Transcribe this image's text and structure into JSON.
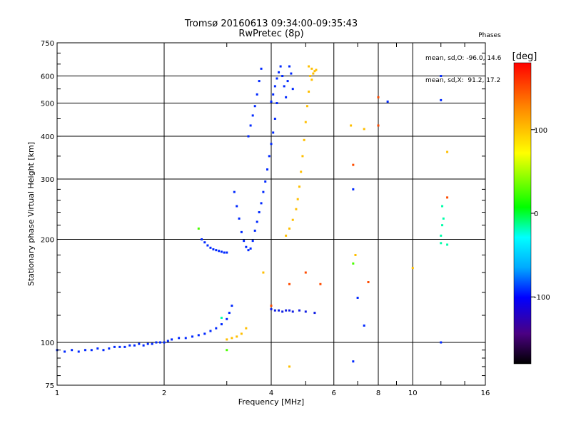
{
  "chart_data": {
    "type": "scatter",
    "title": "Tromsø 20160613 09:34:00-09:35:43",
    "subtitle": "RwPretec (8p)",
    "xlabel": "Frequency [MHz]",
    "ylabel": "Stationary phase Virtual Height [km]",
    "x_scale": "log2",
    "y_scale": "log",
    "xlim": [
      1,
      16
    ],
    "ylim": [
      75,
      750
    ],
    "x_ticks": [
      1,
      2,
      4,
      6,
      8,
      10,
      16
    ],
    "x_tick_labels": [
      "1",
      "2",
      "4",
      "6",
      "8",
      "10",
      "16"
    ],
    "y_ticks": [
      75,
      100,
      200,
      300,
      400,
      500,
      600,
      750
    ],
    "y_tick_labels": [
      "75",
      "100",
      "200",
      "300",
      "400",
      "500",
      "600",
      "750"
    ],
    "grid": true,
    "colorbar": {
      "label": "[deg]",
      "range": [
        -180,
        180
      ],
      "ticks": [
        100,
        0,
        -100
      ],
      "tick_labels": [
        "100",
        "0",
        "-100"
      ]
    },
    "legend": {
      "header": "Phases",
      "lines": [
        "mean, sd,O: -96.0, 14.6",
        "mean, sd,X:  91.2, 17.2"
      ]
    },
    "traces": [
      {
        "phase": -100,
        "points": [
          [
            1.0,
            95
          ],
          [
            1.05,
            94
          ],
          [
            1.1,
            95
          ],
          [
            1.15,
            94
          ],
          [
            1.2,
            95
          ],
          [
            1.25,
            95
          ],
          [
            1.3,
            96
          ],
          [
            1.35,
            95
          ],
          [
            1.4,
            96
          ],
          [
            1.45,
            97
          ],
          [
            1.5,
            97
          ],
          [
            1.55,
            97
          ],
          [
            1.6,
            98
          ],
          [
            1.65,
            98
          ],
          [
            1.7,
            99
          ],
          [
            1.75,
            98
          ],
          [
            1.8,
            99
          ],
          [
            1.85,
            99
          ],
          [
            1.9,
            100
          ],
          [
            1.95,
            100
          ],
          [
            2.0,
            100
          ],
          [
            2.05,
            101
          ],
          [
            2.1,
            102
          ],
          [
            2.2,
            103
          ],
          [
            2.3,
            103
          ],
          [
            2.4,
            104
          ],
          [
            2.5,
            105
          ],
          [
            2.6,
            106
          ],
          [
            2.7,
            108
          ],
          [
            2.8,
            110
          ],
          [
            2.9,
            113
          ],
          [
            3.0,
            117
          ],
          [
            3.05,
            122
          ],
          [
            3.1,
            128
          ]
        ]
      },
      {
        "phase": -100,
        "points": [
          [
            2.55,
            200
          ],
          [
            2.6,
            196
          ],
          [
            2.65,
            192
          ],
          [
            2.7,
            189
          ],
          [
            2.75,
            187
          ],
          [
            2.8,
            186
          ],
          [
            2.85,
            185
          ],
          [
            2.9,
            184
          ],
          [
            2.95,
            183
          ],
          [
            3.0,
            183
          ]
        ]
      },
      {
        "phase": -100,
        "points": [
          [
            3.15,
            275
          ],
          [
            3.2,
            250
          ],
          [
            3.25,
            230
          ],
          [
            3.3,
            210
          ],
          [
            3.35,
            198
          ],
          [
            3.4,
            190
          ],
          [
            3.45,
            186
          ],
          [
            3.5,
            188
          ],
          [
            3.55,
            198
          ],
          [
            3.6,
            212
          ],
          [
            3.65,
            225
          ],
          [
            3.7,
            240
          ],
          [
            3.75,
            255
          ],
          [
            3.8,
            275
          ],
          [
            3.85,
            295
          ],
          [
            3.9,
            320
          ],
          [
            3.95,
            350
          ],
          [
            4.0,
            380
          ],
          [
            4.05,
            410
          ],
          [
            4.1,
            450
          ],
          [
            4.15,
            500
          ]
        ]
      },
      {
        "phase": -100,
        "points": [
          [
            3.45,
            400
          ],
          [
            3.5,
            430
          ],
          [
            3.55,
            460
          ],
          [
            3.6,
            490
          ],
          [
            3.65,
            530
          ],
          [
            3.7,
            580
          ],
          [
            3.75,
            630
          ]
        ]
      },
      {
        "phase": -100,
        "points": [
          [
            4.0,
            505
          ],
          [
            4.05,
            530
          ],
          [
            4.1,
            560
          ],
          [
            4.15,
            590
          ],
          [
            4.2,
            615
          ],
          [
            4.25,
            640
          ],
          [
            4.3,
            600
          ],
          [
            4.35,
            560
          ],
          [
            4.4,
            520
          ],
          [
            4.45,
            580
          ],
          [
            4.5,
            640
          ],
          [
            4.55,
            610
          ],
          [
            4.6,
            550
          ]
        ]
      },
      {
        "phase": -110,
        "points": [
          [
            4.0,
            125
          ],
          [
            4.1,
            124
          ],
          [
            4.2,
            124
          ],
          [
            4.3,
            123
          ],
          [
            4.4,
            124
          ],
          [
            4.5,
            124
          ],
          [
            4.6,
            123
          ],
          [
            4.8,
            124
          ],
          [
            5.0,
            123
          ],
          [
            5.3,
            122
          ]
        ]
      },
      {
        "phase": 100,
        "points": [
          [
            4.4,
            205
          ],
          [
            4.5,
            215
          ],
          [
            4.6,
            228
          ],
          [
            4.7,
            245
          ],
          [
            4.75,
            262
          ],
          [
            4.8,
            285
          ],
          [
            4.85,
            315
          ],
          [
            4.9,
            350
          ],
          [
            4.95,
            390
          ],
          [
            5.0,
            440
          ],
          [
            5.05,
            490
          ],
          [
            5.1,
            540
          ]
        ]
      },
      {
        "phase": 100,
        "points": [
          [
            5.1,
            640
          ],
          [
            5.2,
            630
          ],
          [
            5.3,
            620
          ],
          [
            5.15,
            600
          ],
          [
            5.25,
            610
          ],
          [
            5.35,
            625
          ],
          [
            5.2,
            585
          ]
        ]
      },
      {
        "phase": 100,
        "points": [
          [
            3.0,
            102
          ],
          [
            3.1,
            103
          ],
          [
            3.2,
            104
          ],
          [
            3.3,
            106
          ],
          [
            3.4,
            110
          ]
        ]
      },
      {
        "phase": -100,
        "points": [
          [
            6.8,
            88
          ],
          [
            6.8,
            280
          ],
          [
            7.3,
            112
          ],
          [
            7.0,
            135
          ],
          [
            8.5,
            505
          ],
          [
            12.0,
            100
          ],
          [
            12.0,
            600
          ],
          [
            12.0,
            510
          ]
        ]
      },
      {
        "phase": 20,
        "points": [
          [
            2.5,
            215
          ],
          [
            6.8,
            170
          ],
          [
            3.0,
            95
          ]
        ]
      },
      {
        "phase": -20,
        "points": [
          [
            12.0,
            205
          ],
          [
            12.0,
            195
          ],
          [
            12.5,
            193
          ],
          [
            12.2,
            230
          ],
          [
            12.1,
            250
          ],
          [
            12.1,
            220
          ],
          [
            2.9,
            118
          ]
        ]
      },
      {
        "phase": 150,
        "points": [
          [
            6.8,
            330
          ],
          [
            7.5,
            150
          ],
          [
            8.0,
            430
          ],
          [
            8.0,
            520
          ],
          [
            4.5,
            148
          ],
          [
            5.0,
            160
          ],
          [
            12.5,
            265
          ],
          [
            5.5,
            148
          ],
          [
            4.0,
            128
          ]
        ]
      },
      {
        "phase": 100,
        "points": [
          [
            6.9,
            180
          ],
          [
            6.7,
            430
          ],
          [
            7.3,
            420
          ],
          [
            12.5,
            360
          ],
          [
            10.0,
            165
          ],
          [
            4.5,
            85
          ],
          [
            3.8,
            160
          ]
        ]
      }
    ]
  }
}
